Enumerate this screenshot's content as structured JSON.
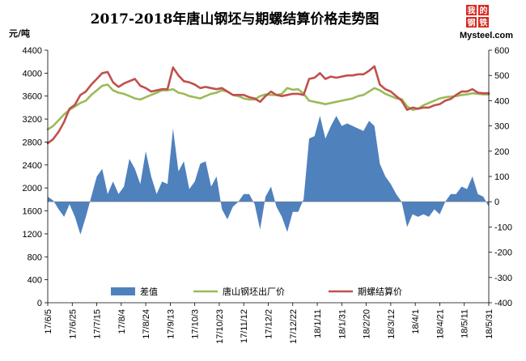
{
  "chart_data": {
    "type": "line",
    "title": "2017-2018年唐山钢坯与期螺结算价格走势图",
    "ylabel": "元/吨",
    "ylim": [
      0,
      4400
    ],
    "y_ticks": [
      0,
      400,
      800,
      1200,
      1600,
      2000,
      2400,
      2800,
      3200,
      3600,
      4000,
      4400
    ],
    "y2lim": [
      -400,
      600
    ],
    "y2_ticks": [
      -400,
      -300,
      -200,
      -100,
      0,
      100,
      200,
      300,
      400,
      500,
      600
    ],
    "x_tick_labels": [
      "17/6/5",
      "17/6/25",
      "17/7/15",
      "17/8/4",
      "17/8/24",
      "17/9/13",
      "17/10/3",
      "17/10/23",
      "17/11/12",
      "17/12/2",
      "17/12/22",
      "18/1/11",
      "18/1/31",
      "18/2/20",
      "18/3/12",
      "18/4/1",
      "18/4/21",
      "18/5/11",
      "18/5/31"
    ],
    "legend_position": "bottom",
    "grid": false,
    "series": [
      {
        "name": "差值",
        "kind": "area",
        "axis": "right",
        "color": "#4f81bd",
        "values": [
          20,
          5,
          -30,
          -60,
          -10,
          -60,
          -130,
          -60,
          20,
          100,
          130,
          30,
          80,
          30,
          60,
          170,
          130,
          70,
          200,
          100,
          30,
          80,
          70,
          290,
          120,
          160,
          50,
          80,
          150,
          160,
          60,
          100,
          -30,
          -70,
          -20,
          0,
          30,
          30,
          -10,
          -110,
          20,
          60,
          -20,
          -60,
          -120,
          -40,
          -40,
          10,
          250,
          260,
          340,
          250,
          300,
          340,
          300,
          310,
          300,
          290,
          280,
          320,
          300,
          150,
          100,
          70,
          30,
          0,
          -100,
          -50,
          -60,
          -50,
          -60,
          -30,
          -50,
          0,
          30,
          30,
          60,
          50,
          100,
          30,
          20,
          -20
        ]
      },
      {
        "name": "唐山钢坯出厂价",
        "kind": "line",
        "axis": "left",
        "color": "#9bbb59",
        "values": [
          3020,
          3080,
          3180,
          3280,
          3360,
          3420,
          3480,
          3520,
          3620,
          3700,
          3780,
          3800,
          3700,
          3660,
          3640,
          3600,
          3560,
          3540,
          3580,
          3620,
          3660,
          3700,
          3700,
          3720,
          3660,
          3640,
          3600,
          3580,
          3560,
          3600,
          3640,
          3660,
          3700,
          3680,
          3620,
          3600,
          3560,
          3540,
          3540,
          3600,
          3630,
          3620,
          3620,
          3640,
          3740,
          3710,
          3720,
          3640,
          3520,
          3500,
          3480,
          3460,
          3480,
          3500,
          3520,
          3540,
          3560,
          3600,
          3620,
          3680,
          3740,
          3700,
          3640,
          3600,
          3560,
          3550,
          3420,
          3360,
          3380,
          3440,
          3480,
          3520,
          3560,
          3580,
          3590,
          3600,
          3620,
          3630,
          3650,
          3640,
          3630,
          3630
        ]
      },
      {
        "name": "期螺结算价",
        "kind": "line",
        "axis": "left",
        "color": "#c0504d",
        "values": [
          2780,
          2850,
          2980,
          3150,
          3380,
          3450,
          3620,
          3680,
          3800,
          3900,
          4000,
          4020,
          3840,
          3760,
          3820,
          3860,
          3900,
          3780,
          3740,
          3680,
          3700,
          3720,
          3720,
          4100,
          3960,
          3860,
          3840,
          3800,
          3740,
          3760,
          3740,
          3720,
          3740,
          3680,
          3620,
          3620,
          3620,
          3580,
          3560,
          3500,
          3600,
          3680,
          3620,
          3600,
          3620,
          3640,
          3640,
          3620,
          3900,
          3920,
          4000,
          3900,
          3940,
          3920,
          3940,
          3960,
          3960,
          3980,
          3980,
          4040,
          4120,
          3800,
          3720,
          3680,
          3600,
          3520,
          3360,
          3400,
          3380,
          3400,
          3400,
          3440,
          3460,
          3520,
          3550,
          3620,
          3680,
          3680,
          3720,
          3660,
          3650,
          3650
        ]
      }
    ]
  },
  "logo": {
    "badge_chars": [
      "我",
      "的",
      "钢",
      "铁"
    ],
    "text": "Mysteel.com"
  }
}
